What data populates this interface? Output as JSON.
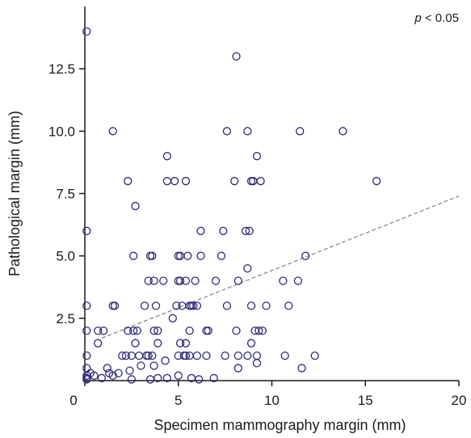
{
  "chart_data": {
    "type": "scatter",
    "xlabel": "Specimen mammography margin (mm)",
    "ylabel": "Pathological margin (mm)",
    "annotation": {
      "p_symbol": "p",
      "p_rest": " < 0.05"
    },
    "xlim": [
      0,
      20
    ],
    "ylim": [
      0,
      15
    ],
    "x_ticks": [
      0,
      5,
      10,
      15,
      20
    ],
    "x_tick_labels": [
      "0",
      "5",
      "10",
      "15",
      "20"
    ],
    "y_ticks": [
      2.5,
      5.0,
      7.5,
      10.0,
      12.5
    ],
    "y_tick_labels": [
      "2.5",
      "5.0",
      "7.5",
      "10.0",
      "12.5"
    ],
    "grid": false,
    "trendline": {
      "style": "dashed",
      "x": [
        0.9,
        20
      ],
      "y": [
        1.7,
        7.4
      ]
    },
    "colors": {
      "points": "#2e2a7a",
      "trendline": "#808080",
      "axis": "#1a1a1a"
    },
    "series": [
      {
        "points": [
          [
            0.1,
            14.0
          ],
          [
            0.1,
            6.0
          ],
          [
            0.1,
            3.0
          ],
          [
            0.1,
            2.0
          ],
          [
            0.1,
            1.0
          ],
          [
            0.1,
            0.5
          ],
          [
            0.1,
            0.2
          ],
          [
            0.1,
            0.1
          ],
          [
            0.1,
            0.05
          ],
          [
            0.3,
            0.3
          ],
          [
            0.5,
            0.2
          ],
          [
            0.7,
            2.0
          ],
          [
            0.7,
            1.5
          ],
          [
            0.9,
            0.1
          ],
          [
            1.0,
            2.0
          ],
          [
            1.2,
            0.5
          ],
          [
            1.3,
            0.3
          ],
          [
            1.5,
            0.2
          ],
          [
            1.5,
            10.0
          ],
          [
            1.5,
            3.0
          ],
          [
            1.6,
            3.0
          ],
          [
            1.8,
            0.3
          ],
          [
            2.0,
            1.0
          ],
          [
            2.2,
            1.0
          ],
          [
            2.3,
            8.0
          ],
          [
            2.3,
            2.0
          ],
          [
            2.4,
            0.4
          ],
          [
            2.5,
            1.0
          ],
          [
            2.5,
            0.05
          ],
          [
            2.6,
            2.0
          ],
          [
            2.6,
            5.0
          ],
          [
            2.7,
            7.0
          ],
          [
            2.7,
            1.5
          ],
          [
            2.8,
            2.0
          ],
          [
            2.9,
            1.0
          ],
          [
            3.0,
            0.6
          ],
          [
            3.2,
            3.0
          ],
          [
            3.3,
            1.0
          ],
          [
            3.4,
            4.0
          ],
          [
            3.4,
            1.0
          ],
          [
            3.5,
            5.0
          ],
          [
            3.5,
            0.05
          ],
          [
            3.6,
            5.0
          ],
          [
            3.6,
            1.0
          ],
          [
            3.7,
            2.0
          ],
          [
            3.7,
            4.0
          ],
          [
            3.7,
            0.6
          ],
          [
            3.8,
            3.0
          ],
          [
            3.9,
            1.5
          ],
          [
            3.9,
            2.0
          ],
          [
            3.9,
            0.1
          ],
          [
            4.2,
            4.0
          ],
          [
            4.3,
            0.8
          ],
          [
            4.4,
            9.0
          ],
          [
            4.4,
            0.1
          ],
          [
            4.4,
            8.0
          ],
          [
            4.7,
            2.5
          ],
          [
            4.8,
            8.0
          ],
          [
            4.9,
            3.0
          ],
          [
            5.0,
            5.0
          ],
          [
            5.0,
            4.0
          ],
          [
            5.0,
            1.0
          ],
          [
            5.0,
            0.2
          ],
          [
            5.1,
            5.0
          ],
          [
            5.1,
            4.0
          ],
          [
            5.1,
            1.5
          ],
          [
            5.2,
            3.0
          ],
          [
            5.3,
            1.0
          ],
          [
            5.4,
            1.0
          ],
          [
            5.4,
            1.5
          ],
          [
            5.4,
            8.0
          ],
          [
            5.4,
            4.0
          ],
          [
            5.5,
            5.0
          ],
          [
            5.6,
            3.0
          ],
          [
            5.6,
            2.0
          ],
          [
            5.6,
            1.0
          ],
          [
            5.7,
            0.1
          ],
          [
            5.7,
            3.0
          ],
          [
            5.8,
            3.0
          ],
          [
            5.9,
            4.0
          ],
          [
            6.0,
            1.0
          ],
          [
            6.0,
            3.0
          ],
          [
            6.1,
            0.05
          ],
          [
            6.2,
            5.0
          ],
          [
            6.2,
            6.0
          ],
          [
            6.5,
            2.0
          ],
          [
            6.5,
            1.0
          ],
          [
            6.6,
            2.0
          ],
          [
            6.9,
            0.1
          ],
          [
            7.0,
            4.0
          ],
          [
            7.3,
            5.0
          ],
          [
            7.4,
            6.0
          ],
          [
            7.5,
            1.0
          ],
          [
            7.6,
            3.0
          ],
          [
            7.6,
            10.0
          ],
          [
            8.0,
            8.0
          ],
          [
            8.1,
            13.0
          ],
          [
            8.1,
            2.0
          ],
          [
            8.2,
            0.5
          ],
          [
            8.2,
            4.0
          ],
          [
            8.2,
            1.0
          ],
          [
            8.6,
            6.0
          ],
          [
            8.7,
            10.0
          ],
          [
            8.7,
            4.5
          ],
          [
            8.7,
            1.0
          ],
          [
            8.8,
            6.0
          ],
          [
            8.9,
            1.5
          ],
          [
            8.9,
            3.0
          ],
          [
            8.9,
            8.0
          ],
          [
            9.0,
            8.0
          ],
          [
            9.1,
            2.0
          ],
          [
            9.2,
            9.0
          ],
          [
            9.2,
            0.7
          ],
          [
            9.2,
            1.0
          ],
          [
            9.3,
            2.0
          ],
          [
            9.4,
            8.0
          ],
          [
            9.5,
            2.0
          ],
          [
            9.7,
            3.0
          ],
          [
            10.6,
            4.0
          ],
          [
            10.7,
            1.0
          ],
          [
            10.9,
            3.0
          ],
          [
            11.4,
            4.0
          ],
          [
            11.5,
            10.0
          ],
          [
            11.6,
            0.5
          ],
          [
            11.8,
            5.0
          ],
          [
            12.3,
            1.0
          ],
          [
            13.8,
            10.0
          ],
          [
            15.6,
            8.0
          ]
        ]
      }
    ]
  }
}
